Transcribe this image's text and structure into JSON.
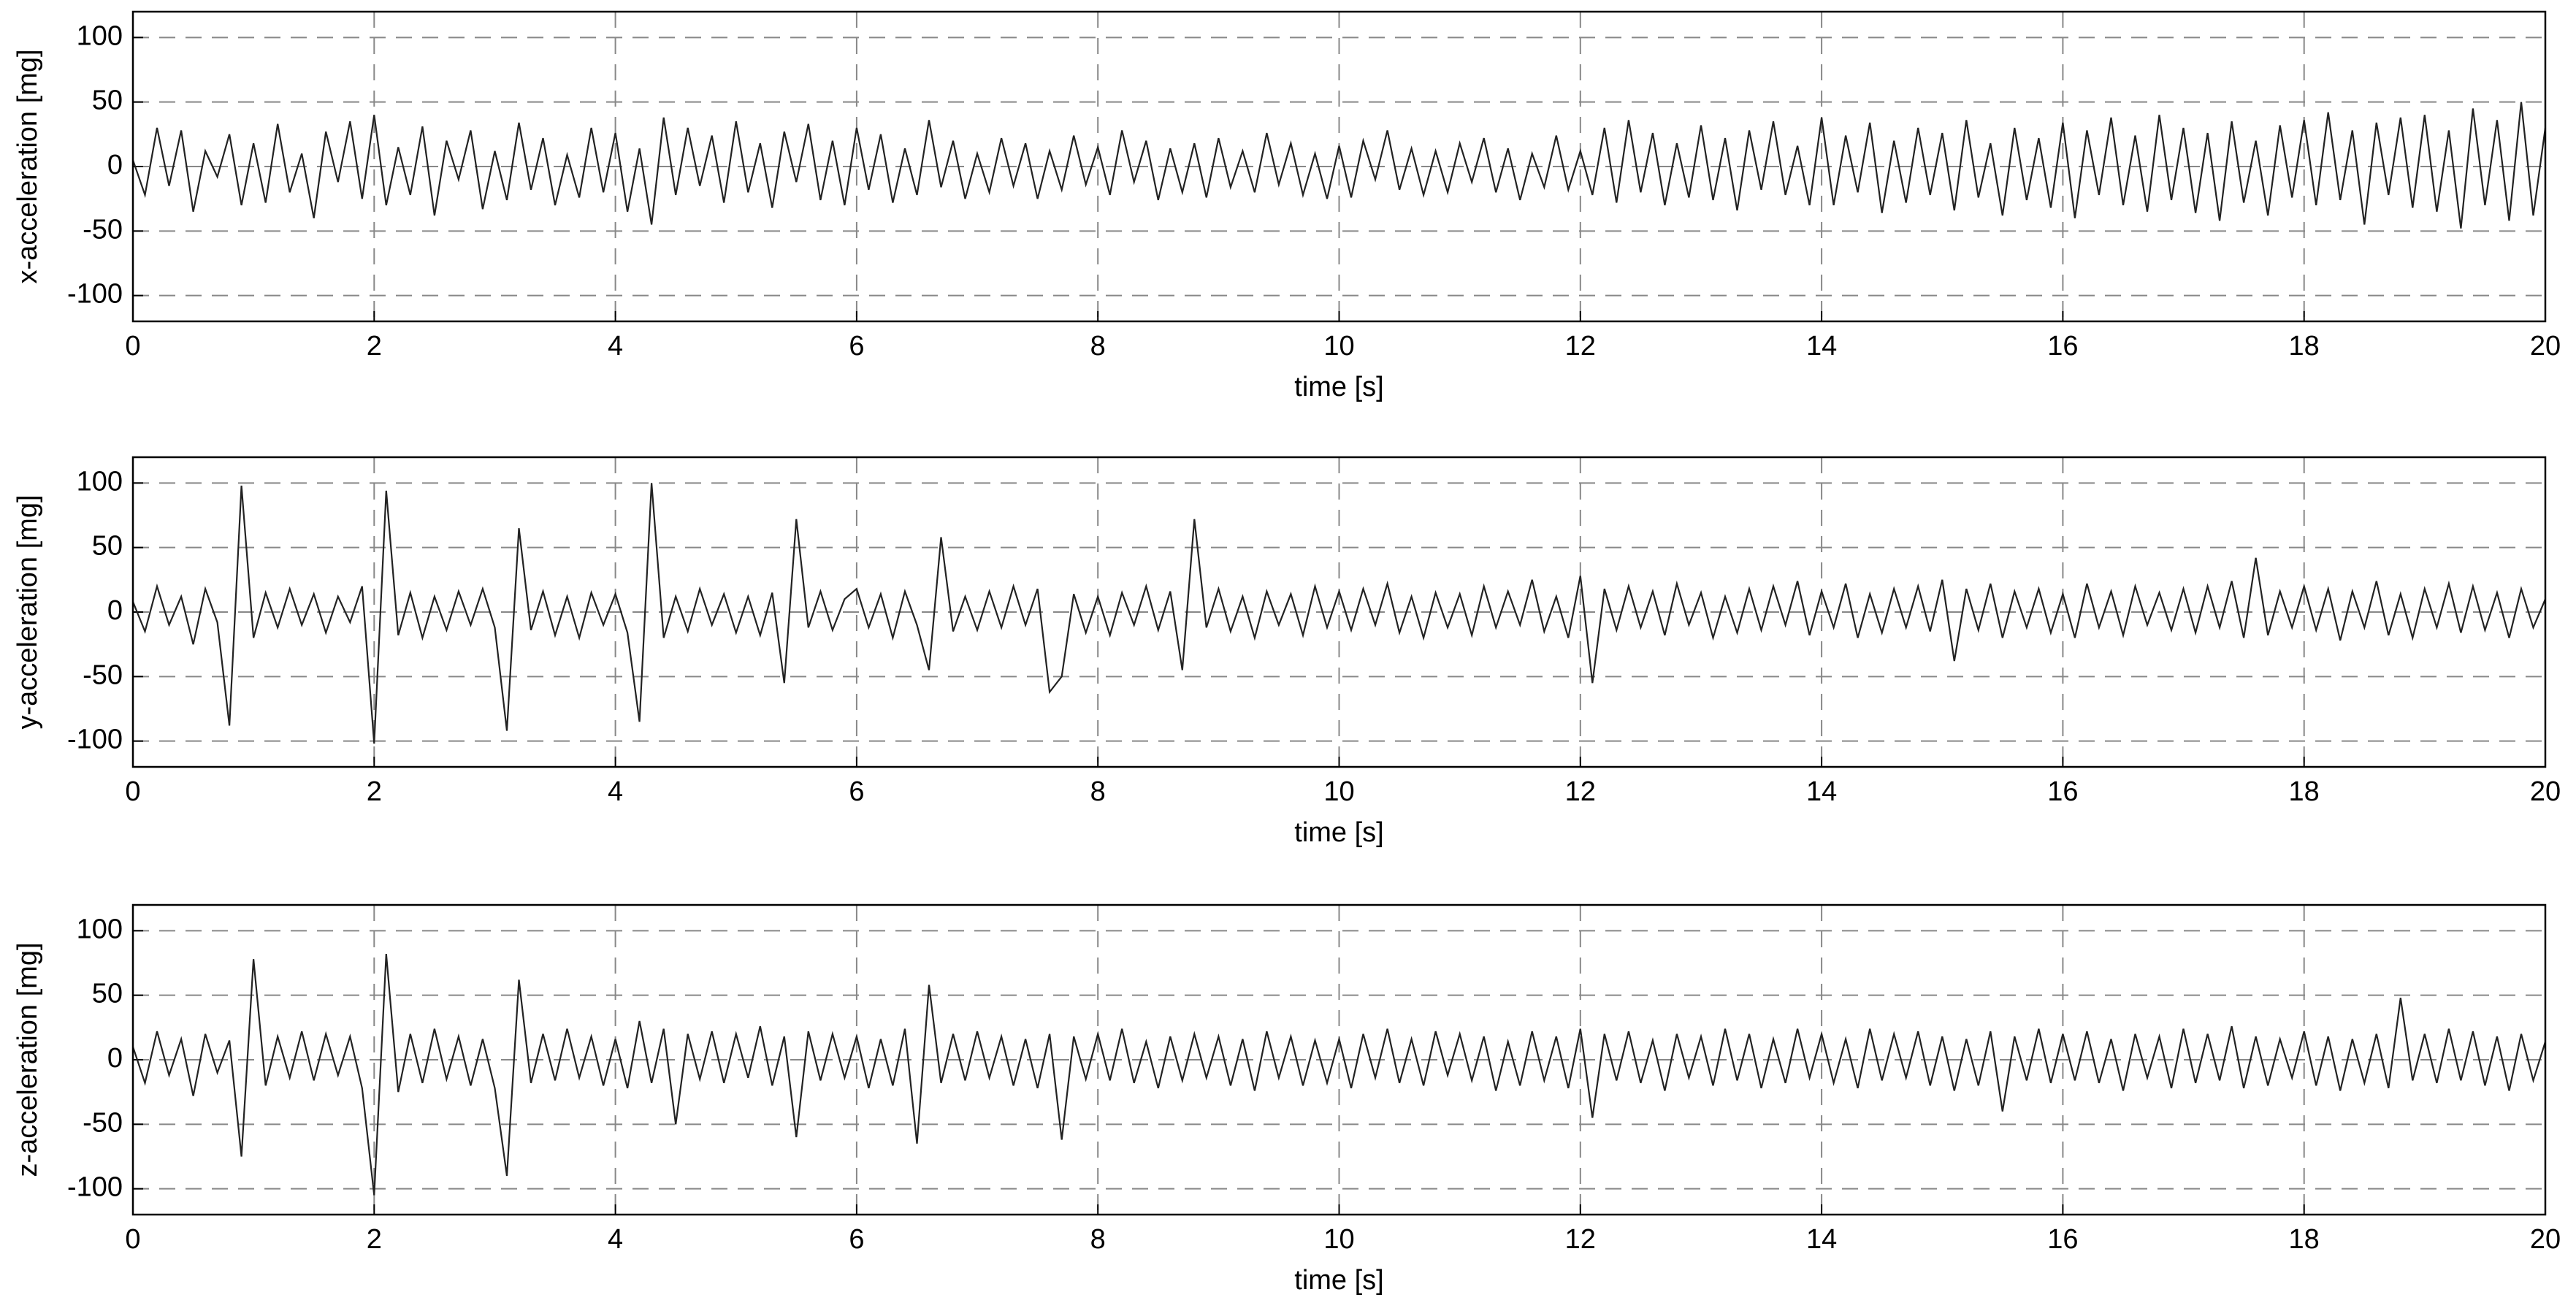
{
  "chart_data": [
    {
      "type": "line",
      "xlabel": "time [s]",
      "ylabel": "x-acceleration [mg]",
      "color": "#222222",
      "grid": true,
      "xlim": [
        0,
        20
      ],
      "xticks": [
        0,
        2,
        4,
        6,
        8,
        10,
        12,
        14,
        16,
        18,
        20
      ],
      "ylim": [
        -120,
        120
      ],
      "yticks": [
        -100,
        -50,
        0,
        50,
        100
      ],
      "x": [
        0,
        0.1,
        0.2,
        0.3,
        0.4,
        0.5,
        0.6,
        0.7,
        0.8,
        0.9,
        1,
        1.1,
        1.2,
        1.3,
        1.4,
        1.5,
        1.6,
        1.7,
        1.8,
        1.9,
        2,
        2.1,
        2.2,
        2.3,
        2.4,
        2.5,
        2.6,
        2.7,
        2.8,
        2.9,
        3,
        3.1,
        3.2,
        3.3,
        3.4,
        3.5,
        3.6,
        3.7,
        3.8,
        3.9,
        4,
        4.1,
        4.2,
        4.3,
        4.4,
        4.5,
        4.6,
        4.7,
        4.8,
        4.9,
        5,
        5.1,
        5.2,
        5.3,
        5.4,
        5.5,
        5.6,
        5.7,
        5.8,
        5.9,
        6,
        6.1,
        6.2,
        6.3,
        6.4,
        6.5,
        6.6,
        6.7,
        6.8,
        6.9,
        7,
        7.1,
        7.2,
        7.3,
        7.4,
        7.5,
        7.6,
        7.7,
        7.8,
        7.9,
        8,
        8.1,
        8.2,
        8.3,
        8.4,
        8.5,
        8.6,
        8.7,
        8.8,
        8.9,
        9,
        9.1,
        9.2,
        9.3,
        9.4,
        9.5,
        9.6,
        9.7,
        9.8,
        9.9,
        10,
        10.1,
        10.2,
        10.3,
        10.4,
        10.5,
        10.6,
        10.7,
        10.8,
        10.9,
        11,
        11.1,
        11.2,
        11.3,
        11.4,
        11.5,
        11.6,
        11.7,
        11.8,
        11.9,
        12,
        12.1,
        12.2,
        12.3,
        12.4,
        12.5,
        12.6,
        12.7,
        12.8,
        12.9,
        13,
        13.1,
        13.2,
        13.3,
        13.4,
        13.5,
        13.6,
        13.7,
        13.8,
        13.9,
        14,
        14.1,
        14.2,
        14.3,
        14.4,
        14.5,
        14.6,
        14.7,
        14.8,
        14.9,
        15,
        15.1,
        15.2,
        15.3,
        15.4,
        15.5,
        15.6,
        15.7,
        15.8,
        15.9,
        16,
        16.1,
        16.2,
        16.3,
        16.4,
        16.5,
        16.6,
        16.7,
        16.8,
        16.9,
        17,
        17.1,
        17.2,
        17.3,
        17.4,
        17.5,
        17.6,
        17.7,
        17.8,
        17.9,
        18,
        18.1,
        18.2,
        18.3,
        18.4,
        18.5,
        18.6,
        18.7,
        18.8,
        18.9,
        19,
        19.1,
        19.2,
        19.3,
        19.4,
        19.5,
        19.6,
        19.7,
        19.8,
        19.9,
        20
      ],
      "values": [
        5,
        -22,
        30,
        -15,
        28,
        -35,
        12,
        -8,
        25,
        -30,
        18,
        -28,
        33,
        -20,
        10,
        -40,
        27,
        -12,
        35,
        -25,
        40,
        -30,
        15,
        -22,
        31,
        -38,
        20,
        -10,
        28,
        -33,
        12,
        -26,
        34,
        -18,
        22,
        -30,
        9,
        -24,
        30,
        -20,
        26,
        -35,
        14,
        -45,
        38,
        -22,
        30,
        -15,
        24,
        -28,
        35,
        -20,
        18,
        -32,
        27,
        -12,
        33,
        -26,
        20,
        -30,
        30,
        -18,
        25,
        -28,
        14,
        -22,
        36,
        -16,
        20,
        -25,
        10,
        -20,
        22,
        -15,
        18,
        -25,
        12,
        -18,
        24,
        -14,
        15,
        -22,
        28,
        -12,
        20,
        -26,
        14,
        -20,
        18,
        -24,
        22,
        -16,
        12,
        -20,
        26,
        -14,
        18,
        -22,
        10,
        -25,
        16,
        -24,
        20,
        -10,
        28,
        -18,
        14,
        -22,
        12,
        -20,
        18,
        -12,
        22,
        -20,
        14,
        -26,
        10,
        -16,
        24,
        -18,
        12,
        -22,
        30,
        -28,
        36,
        -20,
        26,
        -30,
        18,
        -24,
        32,
        -26,
        22,
        -34,
        28,
        -18,
        35,
        -22,
        16,
        -30,
        38,
        -30,
        24,
        -20,
        34,
        -36,
        20,
        -28,
        30,
        -22,
        26,
        -34,
        36,
        -24,
        18,
        -38,
        30,
        -26,
        22,
        -32,
        34,
        -40,
        28,
        -22,
        38,
        -30,
        24,
        -35,
        40,
        -26,
        30,
        -36,
        26,
        -42,
        35,
        -28,
        20,
        -38,
        32,
        -24,
        36,
        -30,
        42,
        -26,
        28,
        -45,
        34,
        -22,
        38,
        -32,
        40,
        -35,
        28,
        -48,
        45,
        -30,
        36,
        -42,
        50,
        -38,
        30
      ]
    },
    {
      "type": "line",
      "xlabel": "time [s]",
      "ylabel": "y-acceleration [mg]",
      "color": "#222222",
      "grid": true,
      "xlim": [
        0,
        20
      ],
      "xticks": [
        0,
        2,
        4,
        6,
        8,
        10,
        12,
        14,
        16,
        18,
        20
      ],
      "ylim": [
        -120,
        120
      ],
      "yticks": [
        -100,
        -50,
        0,
        50,
        100
      ],
      "x": [
        0,
        0.1,
        0.2,
        0.3,
        0.4,
        0.5,
        0.6,
        0.7,
        0.8,
        0.9,
        1,
        1.1,
        1.2,
        1.3,
        1.4,
        1.5,
        1.6,
        1.7,
        1.8,
        1.9,
        2,
        2.1,
        2.2,
        2.3,
        2.4,
        2.5,
        2.6,
        2.7,
        2.8,
        2.9,
        3,
        3.1,
        3.2,
        3.3,
        3.4,
        3.5,
        3.6,
        3.7,
        3.8,
        3.9,
        4,
        4.1,
        4.2,
        4.3,
        4.4,
        4.5,
        4.6,
        4.7,
        4.8,
        4.9,
        5,
        5.1,
        5.2,
        5.3,
        5.4,
        5.5,
        5.6,
        5.7,
        5.8,
        5.9,
        6,
        6.1,
        6.2,
        6.3,
        6.4,
        6.5,
        6.6,
        6.7,
        6.8,
        6.9,
        7,
        7.1,
        7.2,
        7.3,
        7.4,
        7.5,
        7.6,
        7.7,
        7.8,
        7.9,
        8,
        8.1,
        8.2,
        8.3,
        8.4,
        8.5,
        8.6,
        8.7,
        8.8,
        8.9,
        9,
        9.1,
        9.2,
        9.3,
        9.4,
        9.5,
        9.6,
        9.7,
        9.8,
        9.9,
        10,
        10.1,
        10.2,
        10.3,
        10.4,
        10.5,
        10.6,
        10.7,
        10.8,
        10.9,
        11,
        11.1,
        11.2,
        11.3,
        11.4,
        11.5,
        11.6,
        11.7,
        11.8,
        11.9,
        12,
        12.1,
        12.2,
        12.3,
        12.4,
        12.5,
        12.6,
        12.7,
        12.8,
        12.9,
        13,
        13.1,
        13.2,
        13.3,
        13.4,
        13.5,
        13.6,
        13.7,
        13.8,
        13.9,
        14,
        14.1,
        14.2,
        14.3,
        14.4,
        14.5,
        14.6,
        14.7,
        14.8,
        14.9,
        15,
        15.1,
        15.2,
        15.3,
        15.4,
        15.5,
        15.6,
        15.7,
        15.8,
        15.9,
        16,
        16.1,
        16.2,
        16.3,
        16.4,
        16.5,
        16.6,
        16.7,
        16.8,
        16.9,
        17,
        17.1,
        17.2,
        17.3,
        17.4,
        17.5,
        17.6,
        17.7,
        17.8,
        17.9,
        18,
        18.1,
        18.2,
        18.3,
        18.4,
        18.5,
        18.6,
        18.7,
        18.8,
        18.9,
        19,
        19.1,
        19.2,
        19.3,
        19.4,
        19.5,
        19.6,
        19.7,
        19.8,
        19.9,
        20
      ],
      "values": [
        8,
        -15,
        20,
        -10,
        12,
        -25,
        18,
        -8,
        -88,
        98,
        -20,
        15,
        -12,
        18,
        -10,
        14,
        -16,
        12,
        -8,
        20,
        -102,
        94,
        -18,
        15,
        -20,
        12,
        -14,
        16,
        -10,
        18,
        -12,
        -92,
        65,
        -14,
        16,
        -18,
        12,
        -20,
        15,
        -10,
        14,
        -16,
        -85,
        100,
        -20,
        12,
        -15,
        18,
        -10,
        14,
        -16,
        12,
        -18,
        15,
        -55,
        72,
        -12,
        16,
        -14,
        10,
        18,
        -12,
        14,
        -20,
        16,
        -10,
        -45,
        58,
        -15,
        12,
        -14,
        16,
        -12,
        20,
        -10,
        18,
        -62,
        -50,
        14,
        -16,
        12,
        -18,
        15,
        -10,
        20,
        -14,
        16,
        -45,
        72,
        -12,
        18,
        -15,
        12,
        -20,
        16,
        -10,
        14,
        -18,
        20,
        -12,
        16,
        -14,
        18,
        -10,
        22,
        -16,
        12,
        -20,
        15,
        -12,
        14,
        -18,
        20,
        -12,
        16,
        -10,
        25,
        -15,
        12,
        -20,
        28,
        -55,
        18,
        -14,
        20,
        -12,
        16,
        -18,
        22,
        -10,
        15,
        -20,
        12,
        -16,
        18,
        -14,
        20,
        -10,
        24,
        -18,
        16,
        -12,
        22,
        -20,
        14,
        -16,
        18,
        -12,
        20,
        -15,
        25,
        -38,
        18,
        -14,
        22,
        -20,
        16,
        -12,
        18,
        -16,
        14,
        -20,
        22,
        -12,
        16,
        -18,
        20,
        -10,
        15,
        -14,
        18,
        -16,
        20,
        -12,
        24,
        -20,
        42,
        -18,
        16,
        -12,
        20,
        -14,
        18,
        -22,
        16,
        -12,
        24,
        -18,
        14,
        -20,
        18,
        -12,
        22,
        -16,
        20,
        -14,
        15,
        -20,
        18,
        -12,
        10
      ]
    },
    {
      "type": "line",
      "xlabel": "time [s]",
      "ylabel": "z-acceleration [mg]",
      "color": "#222222",
      "grid": true,
      "xlim": [
        0,
        20
      ],
      "xticks": [
        0,
        2,
        4,
        6,
        8,
        10,
        12,
        14,
        16,
        18,
        20
      ],
      "ylim": [
        -120,
        120
      ],
      "yticks": [
        -100,
        -50,
        0,
        50,
        100
      ],
      "x": [
        0,
        0.1,
        0.2,
        0.3,
        0.4,
        0.5,
        0.6,
        0.7,
        0.8,
        0.9,
        1,
        1.1,
        1.2,
        1.3,
        1.4,
        1.5,
        1.6,
        1.7,
        1.8,
        1.9,
        2,
        2.1,
        2.2,
        2.3,
        2.4,
        2.5,
        2.6,
        2.7,
        2.8,
        2.9,
        3,
        3.1,
        3.2,
        3.3,
        3.4,
        3.5,
        3.6,
        3.7,
        3.8,
        3.9,
        4,
        4.1,
        4.2,
        4.3,
        4.4,
        4.5,
        4.6,
        4.7,
        4.8,
        4.9,
        5,
        5.1,
        5.2,
        5.3,
        5.4,
        5.5,
        5.6,
        5.7,
        5.8,
        5.9,
        6,
        6.1,
        6.2,
        6.3,
        6.4,
        6.5,
        6.6,
        6.7,
        6.8,
        6.9,
        7,
        7.1,
        7.2,
        7.3,
        7.4,
        7.5,
        7.6,
        7.7,
        7.8,
        7.9,
        8,
        8.1,
        8.2,
        8.3,
        8.4,
        8.5,
        8.6,
        8.7,
        8.8,
        8.9,
        9,
        9.1,
        9.2,
        9.3,
        9.4,
        9.5,
        9.6,
        9.7,
        9.8,
        9.9,
        10,
        10.1,
        10.2,
        10.3,
        10.4,
        10.5,
        10.6,
        10.7,
        10.8,
        10.9,
        11,
        11.1,
        11.2,
        11.3,
        11.4,
        11.5,
        11.6,
        11.7,
        11.8,
        11.9,
        12,
        12.1,
        12.2,
        12.3,
        12.4,
        12.5,
        12.6,
        12.7,
        12.8,
        12.9,
        13,
        13.1,
        13.2,
        13.3,
        13.4,
        13.5,
        13.6,
        13.7,
        13.8,
        13.9,
        14,
        14.1,
        14.2,
        14.3,
        14.4,
        14.5,
        14.6,
        14.7,
        14.8,
        14.9,
        15,
        15.1,
        15.2,
        15.3,
        15.4,
        15.5,
        15.6,
        15.7,
        15.8,
        15.9,
        16,
        16.1,
        16.2,
        16.3,
        16.4,
        16.5,
        16.6,
        16.7,
        16.8,
        16.9,
        17,
        17.1,
        17.2,
        17.3,
        17.4,
        17.5,
        17.6,
        17.7,
        17.8,
        17.9,
        18,
        18.1,
        18.2,
        18.3,
        18.4,
        18.5,
        18.6,
        18.7,
        18.8,
        18.9,
        19,
        19.1,
        19.2,
        19.3,
        19.4,
        19.5,
        19.6,
        19.7,
        19.8,
        19.9,
        20
      ],
      "values": [
        10,
        -18,
        22,
        -12,
        16,
        -28,
        20,
        -10,
        15,
        -75,
        78,
        -20,
        18,
        -14,
        22,
        -16,
        20,
        -12,
        18,
        -22,
        -105,
        82,
        -25,
        20,
        -18,
        24,
        -15,
        18,
        -20,
        16,
        -22,
        -90,
        62,
        -18,
        20,
        -16,
        24,
        -14,
        18,
        -20,
        16,
        -22,
        30,
        -18,
        24,
        -50,
        20,
        -15,
        22,
        -18,
        20,
        -14,
        26,
        -20,
        18,
        -60,
        22,
        -16,
        20,
        -14,
        18,
        -22,
        16,
        -20,
        24,
        -65,
        58,
        -18,
        20,
        -16,
        22,
        -14,
        18,
        -20,
        16,
        -22,
        20,
        -62,
        18,
        -15,
        20,
        -16,
        24,
        -18,
        14,
        -22,
        18,
        -16,
        20,
        -14,
        18,
        -20,
        16,
        -24,
        22,
        -14,
        18,
        -20,
        15,
        -18,
        16,
        -22,
        20,
        -14,
        24,
        -18,
        16,
        -20,
        22,
        -12,
        20,
        -16,
        18,
        -24,
        14,
        -20,
        22,
        -16,
        18,
        -22,
        24,
        -45,
        20,
        -16,
        22,
        -18,
        15,
        -24,
        20,
        -14,
        18,
        -20,
        24,
        -16,
        20,
        -22,
        16,
        -18,
        24,
        -14,
        20,
        -18,
        16,
        -22,
        24,
        -16,
        20,
        -14,
        22,
        -20,
        18,
        -24,
        16,
        -20,
        22,
        -40,
        18,
        -16,
        24,
        -18,
        20,
        -16,
        22,
        -18,
        16,
        -24,
        20,
        -14,
        18,
        -22,
        24,
        -18,
        20,
        -16,
        26,
        -22,
        18,
        -20,
        16,
        -14,
        22,
        -20,
        18,
        -24,
        16,
        -18,
        20,
        -22,
        48,
        -16,
        20,
        -18,
        24,
        -16,
        22,
        -20,
        18,
        -24,
        20,
        -16,
        14
      ]
    }
  ]
}
